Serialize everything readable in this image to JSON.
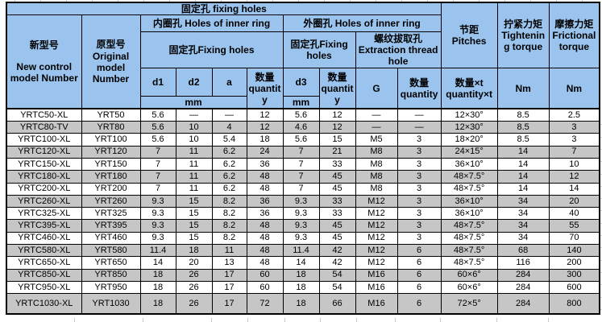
{
  "header": {
    "banner": "固定孔 fixing holes",
    "new_model": {
      "zh": "新型号",
      "en": "New control model Number"
    },
    "original_model": {
      "zh": "原型号",
      "en": "Original model Number"
    },
    "inner_ring": "内圈孔 Holes of inner ring",
    "outer_ring": "外圈孔 Holes of inner ring",
    "inner_fixing": "固定孔Fixing holes",
    "outer_fixing": "固定孔Fixing holes",
    "extraction": {
      "zh": "螺纹拔取孔",
      "en": "Extraction thread hole"
    },
    "pitches": {
      "zh": "节距",
      "en": "Pitches"
    },
    "tightening": {
      "zh": "拧紧力矩",
      "en": "Tightening torque"
    },
    "frictional": {
      "zh": "摩擦力矩",
      "en": "Frictional torque"
    },
    "d1": "d1",
    "d2": "d2",
    "a": "a",
    "d3": "d3",
    "g": "G",
    "qty_inner": "数量 quantity",
    "qty_outer": "数量 quantity",
    "qty_extraction": "数量 quantity",
    "qty_pitch": "数量×t quantity×t",
    "mm_inner": "mm",
    "mm_outer": "mm",
    "nm_tightening": "Nm",
    "nm_frictional": "Nm"
  },
  "colors": {
    "header_blue": "#9AC4EE",
    "zebra_gray": "#C6C6C6",
    "border_black": "#000000"
  },
  "rows": [
    [
      "YRTC50-XL",
      "YRT50",
      "5.6",
      "—",
      "—",
      "12",
      "5.6",
      "12",
      "—",
      "—",
      "12×30°",
      "8.5",
      "2.5"
    ],
    [
      "YRTC80-TV",
      "YRT80",
      "5.6",
      "10",
      "4",
      "12",
      "4.6",
      "12",
      "—",
      "—",
      "12×30°",
      "8.5",
      "3"
    ],
    [
      "YRTC100-XL",
      "YRT100",
      "5.6",
      "10",
      "5.4",
      "18",
      "5.6",
      "15",
      "M5",
      "3",
      "18×20°",
      "8.5",
      "3"
    ],
    [
      "YRTC120-XL",
      "YRT120",
      "7",
      "11",
      "6.2",
      "24",
      "7",
      "21",
      "M8",
      "3",
      "24×15°",
      "14",
      "7"
    ],
    [
      "YRTC150-XL",
      "YRT150",
      "7",
      "11",
      "6.2",
      "36",
      "7",
      "33",
      "M8",
      "3",
      "36×10°",
      "14",
      "10"
    ],
    [
      "YRTC180-XL",
      "YRT180",
      "7",
      "11",
      "6.2",
      "48",
      "7",
      "45",
      "M8",
      "3",
      "48×7.5°",
      "14",
      "12"
    ],
    [
      "YRTC200-XL",
      "YRT200",
      "7",
      "11",
      "6.2",
      "48",
      "7",
      "45",
      "M8",
      "3",
      "48×7.5°",
      "14",
      "14"
    ],
    [
      "YRTC260-XL",
      "YRT260",
      "9.3",
      "15",
      "8.2",
      "36",
      "9.3",
      "33",
      "M12",
      "3",
      "36×10°",
      "34",
      "20"
    ],
    [
      "YRTC325-XL",
      "YRT325",
      "9.3",
      "15",
      "8.2",
      "36",
      "9.3",
      "33",
      "M12",
      "3",
      "36×10°",
      "34",
      "40"
    ],
    [
      "YRTC395-XL",
      "YRT395",
      "9.3",
      "15",
      "8.2",
      "48",
      "9.3",
      "45",
      "M12",
      "3",
      "48×7.5°",
      "34",
      "55"
    ],
    [
      "YRTC460-XL",
      "YRT460",
      "9.3",
      "15",
      "8.2",
      "48",
      "9.3",
      "45",
      "M12",
      "3",
      "48×7.5°",
      "34",
      "70"
    ],
    [
      "YRTC580-XL",
      "YRT580",
      "11.4",
      "18",
      "11",
      "48",
      "11.4",
      "42",
      "M12",
      "6",
      "48×7.5°",
      "68",
      "140"
    ],
    [
      "YRTC650-XL",
      "YRT650",
      "14",
      "20",
      "13",
      "48",
      "14",
      "42",
      "M12",
      "6",
      "48×7.5°",
      "116",
      "200"
    ],
    [
      "YRTC850-XL",
      "YRT850",
      "18",
      "26",
      "17",
      "60",
      "18",
      "54",
      "M16",
      "6",
      "60×6°",
      "284",
      "300"
    ],
    [
      "YRTC950-XL",
      "YRT950",
      "18",
      "26",
      "17",
      "60",
      "18",
      "54",
      "M16",
      "6",
      "60×6°",
      "284",
      "600"
    ],
    [
      "YRTC1030-XL",
      "YRT1030",
      "18",
      "26",
      "17",
      "72",
      "18",
      "66",
      "M16",
      "6",
      "72×5°",
      "284",
      "800"
    ]
  ]
}
